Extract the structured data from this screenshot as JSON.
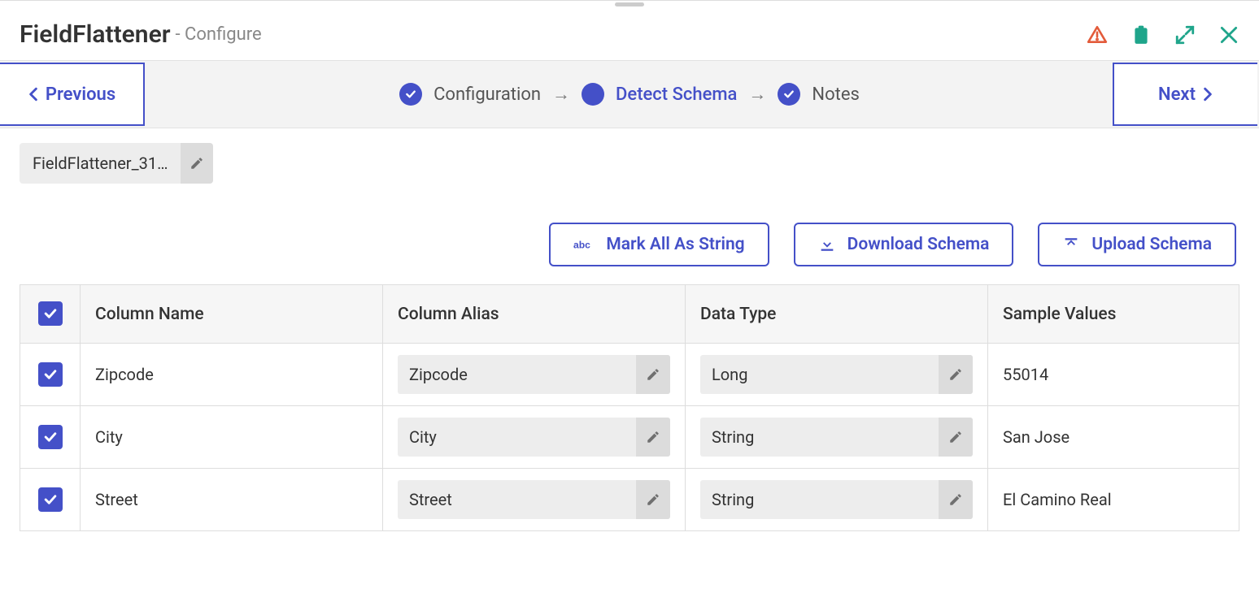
{
  "colors": {
    "primary": "#4450c8",
    "accent_green": "#1fa58b",
    "warning_red": "#e35b3a",
    "bg_chip": "#ededed",
    "bg_chip_btn": "#dcdcdc",
    "bg_stepbar": "#f3f3f3",
    "border": "#dddddd"
  },
  "header": {
    "title": "FieldFlattener",
    "subtitle": "- Configure"
  },
  "nav": {
    "prev_label": "Previous",
    "next_label": "Next"
  },
  "steps": {
    "step1": "Configuration",
    "step2": "Detect Schema",
    "step3": "Notes"
  },
  "node_chip": {
    "label": "FieldFlattener_31…"
  },
  "actions": {
    "mark_all_string": "Mark All As String",
    "download_schema": "Download Schema",
    "upload_schema": "Upload Schema"
  },
  "table": {
    "headers": {
      "col_name": "Column Name",
      "col_alias": "Column Alias",
      "col_type": "Data Type",
      "col_sample": "Sample Values"
    },
    "rows": [
      {
        "checked": true,
        "name": "Zipcode",
        "alias": "Zipcode",
        "type": "Long",
        "sample": "55014"
      },
      {
        "checked": true,
        "name": "City",
        "alias": "City",
        "type": "String",
        "sample": "San Jose"
      },
      {
        "checked": true,
        "name": "Street",
        "alias": "Street",
        "type": "String",
        "sample": "El Camino Real"
      }
    ]
  }
}
